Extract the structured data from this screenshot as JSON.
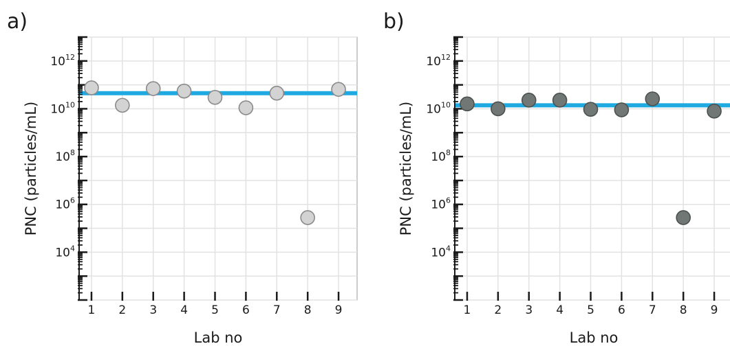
{
  "chart_data": [
    {
      "panel_label": "a)",
      "type": "scatter",
      "xlabel": "Lab no",
      "ylabel": "PNC (particles/mL)",
      "x_ticks": [
        "1",
        "2",
        "3",
        "4",
        "5",
        "6",
        "7",
        "8",
        "9"
      ],
      "y_tick_labels": [
        {
          "base": "10",
          "exp": "12"
        },
        {
          "base": "10",
          "exp": "10"
        },
        {
          "base": "10",
          "exp": "8"
        },
        {
          "base": "10",
          "exp": "6"
        },
        {
          "base": "10",
          "exp": "4"
        }
      ],
      "y_scale": "log",
      "ylim": [
        100,
        10000000000000.0
      ],
      "xlim": [
        0.6,
        9.6
      ],
      "grid": true,
      "reference_line": 45000000000.0,
      "reference_color": "#1ea9e1",
      "marker_fill": "#d3d3d3",
      "marker_stroke": "#8a8a8a",
      "points": [
        {
          "x": 1,
          "y": 75000000000.0
        },
        {
          "x": 2,
          "y": 14000000000.0
        },
        {
          "x": 3,
          "y": 70000000000.0
        },
        {
          "x": 4,
          "y": 55000000000.0
        },
        {
          "x": 5,
          "y": 30000000000.0
        },
        {
          "x": 6,
          "y": 11000000000.0
        },
        {
          "x": 7,
          "y": 45000000000.0
        },
        {
          "x": 8,
          "y": 280000.0
        },
        {
          "x": 9,
          "y": 65000000000.0
        }
      ]
    },
    {
      "panel_label": "b)",
      "type": "scatter",
      "xlabel": "Lab no",
      "ylabel": "PNC (particles/mL)",
      "x_ticks": [
        "1",
        "2",
        "3",
        "4",
        "5",
        "6",
        "7",
        "8",
        "9"
      ],
      "y_tick_labels": [
        {
          "base": "10",
          "exp": "12"
        },
        {
          "base": "10",
          "exp": "10"
        },
        {
          "base": "10",
          "exp": "8"
        },
        {
          "base": "10",
          "exp": "6"
        },
        {
          "base": "10",
          "exp": "4"
        }
      ],
      "y_scale": "log",
      "ylim": [
        100,
        10000000000000.0
      ],
      "xlim": [
        0.6,
        9.6
      ],
      "grid": true,
      "reference_line": 14000000000.0,
      "reference_color": "#1ea9e1",
      "marker_fill": "#717775",
      "marker_stroke": "#4a504e",
      "points": [
        {
          "x": 1,
          "y": 16000000000.0
        },
        {
          "x": 2,
          "y": 10000000000.0
        },
        {
          "x": 3,
          "y": 23000000000.0
        },
        {
          "x": 4,
          "y": 23000000000.0
        },
        {
          "x": 5,
          "y": 9500000000.0
        },
        {
          "x": 6,
          "y": 9000000000.0
        },
        {
          "x": 7,
          "y": 26000000000.0
        },
        {
          "x": 8,
          "y": 280000.0
        },
        {
          "x": 9,
          "y": 8000000000.0
        }
      ]
    }
  ]
}
